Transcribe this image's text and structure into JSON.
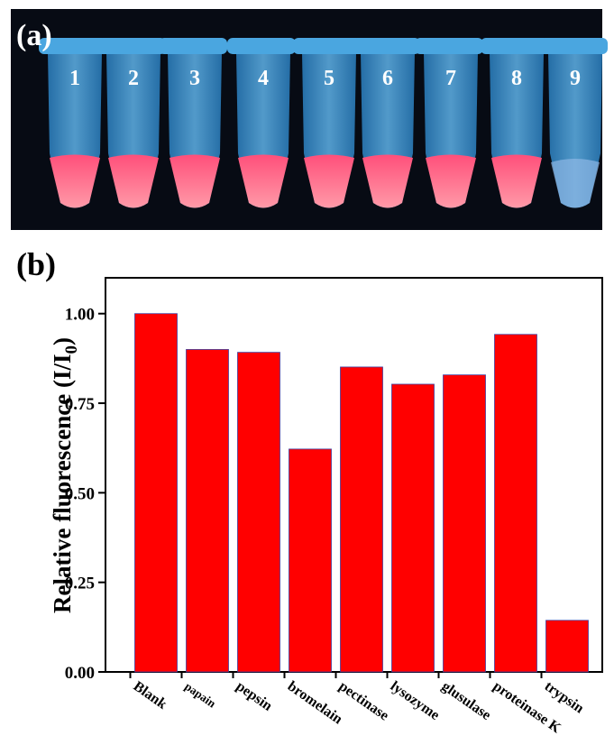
{
  "photo": {
    "panel_label": "(a)",
    "tube_labels": [
      "1",
      "2",
      "3",
      "4",
      "5",
      "6",
      "7",
      "8",
      "9"
    ]
  },
  "chart_data": {
    "type": "bar",
    "panel_label": "(b)",
    "ylabel": {
      "main": "Relative fluorescence (I/I",
      "sub": "0",
      "end": ")"
    },
    "categories": [
      "Blank",
      "papain",
      "pepsin",
      "bromelain",
      "pectinase",
      "lysozyme",
      "glusulase",
      "proteinase K",
      "trypsin"
    ],
    "values": [
      1.0,
      0.9,
      0.892,
      0.622,
      0.851,
      0.803,
      0.829,
      0.942,
      0.144
    ],
    "color": "#ff0000",
    "ylim": [
      0,
      1.1
    ],
    "yticks": [
      {
        "value": 0,
        "label": "0.00"
      },
      {
        "value": 0.25,
        "label": "0.25"
      },
      {
        "value": 0.5,
        "label": "0.50"
      },
      {
        "value": 0.75,
        "label": "0.75"
      },
      {
        "value": 1,
        "label": "1.00"
      }
    ]
  }
}
